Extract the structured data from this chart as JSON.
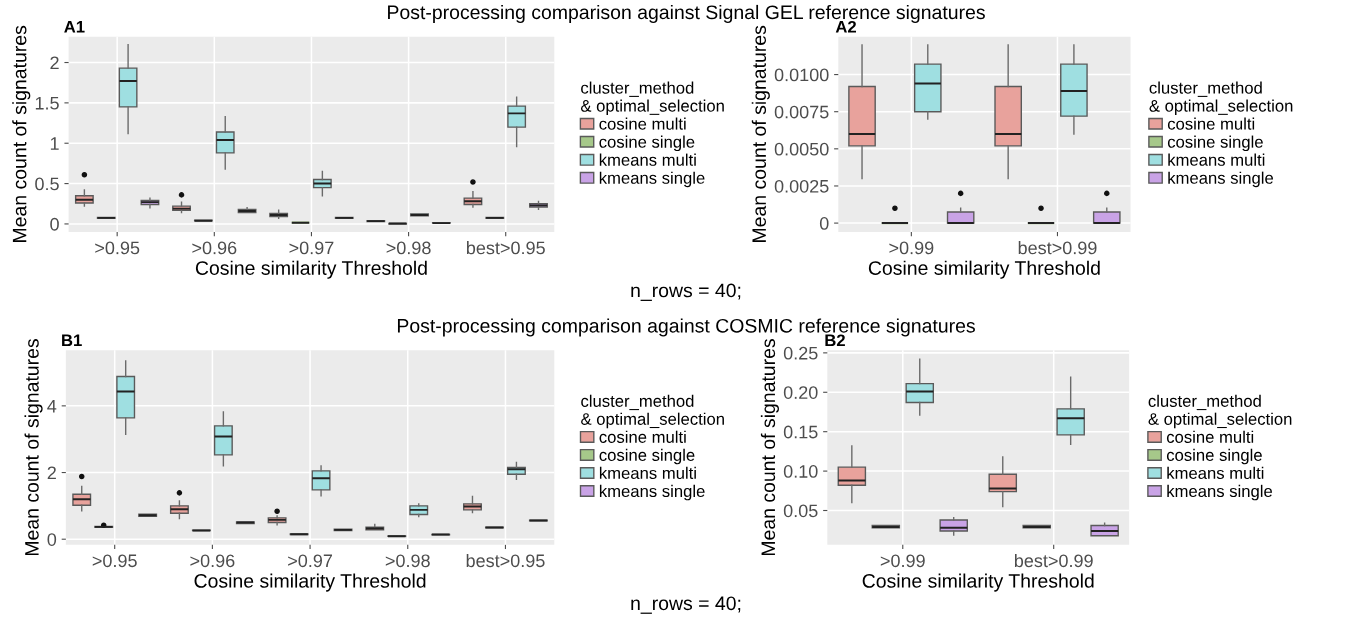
{
  "chart_data": [
    {
      "type": "box",
      "title": "A1",
      "xlabel": "Cosine similarity Threshold",
      "ylabel": "Mean count of signatures",
      "legend_title": "cluster_method\n& optimal_selection",
      "legend": "right",
      "grid": true,
      "annotations": [
        "Post-processing comparison against Signal GEL reference signatures",
        "n_rows = 40;"
      ],
      "categories": [
        ">0.95",
        ">0.96",
        ">0.97",
        ">0.98",
        "best>0.95"
      ],
      "ylim": [
        -0.1,
        2.32
      ],
      "yticks": [
        0,
        0.5,
        1,
        {
          "value": 1.5,
          "label": "1.5"
        },
        2
      ],
      "series": [
        {
          "name": "cosine multi",
          "color": "#e8a29c",
          "boxes": [
            {
              "low": 0.22,
              "q1": 0.26,
              "median": 0.3,
              "q3": 0.35,
              "high": 0.42,
              "outliers": [
                0.61
              ]
            },
            {
              "low": 0.14,
              "q1": 0.17,
              "median": 0.19,
              "q3": 0.22,
              "high": 0.27,
              "outliers": [
                0.36
              ]
            },
            {
              "low": 0.07,
              "q1": 0.09,
              "median": 0.11,
              "q3": 0.13,
              "high": 0.17
            },
            {
              "low": 0.03,
              "q1": 0.03,
              "median": 0.035,
              "q3": 0.04,
              "high": 0.04
            },
            {
              "low": 0.21,
              "q1": 0.24,
              "median": 0.28,
              "q3": 0.32,
              "high": 0.4,
              "outliers": [
                0.52
              ]
            }
          ]
        },
        {
          "name": "cosine single",
          "color": "#a6c88a",
          "boxes": [
            {
              "low": 0.07,
              "q1": 0.07,
              "median": 0.075,
              "q3": 0.08,
              "high": 0.08
            },
            {
              "low": 0.04,
              "q1": 0.04,
              "median": 0.04,
              "q3": 0.045,
              "high": 0.045
            },
            {
              "low": 0.015,
              "q1": 0.015,
              "median": 0.015,
              "q3": 0.015,
              "high": 0.015
            },
            {
              "low": 0,
              "q1": 0,
              "median": 0.005,
              "q3": 0.005,
              "high": 0.005
            },
            {
              "low": 0.07,
              "q1": 0.07,
              "median": 0.075,
              "q3": 0.08,
              "high": 0.08
            }
          ]
        },
        {
          "name": "kmeans multi",
          "color": "#9fdfe1",
          "boxes": [
            {
              "low": 1.12,
              "q1": 1.45,
              "median": 1.77,
              "q3": 1.93,
              "high": 2.22
            },
            {
              "low": 0.68,
              "q1": 0.88,
              "median": 1.04,
              "q3": 1.14,
              "high": 1.33
            },
            {
              "low": 0.35,
              "q1": 0.45,
              "median": 0.5,
              "q3": 0.55,
              "high": 0.65
            },
            {
              "low": 0.1,
              "q1": 0.1,
              "median": 0.11,
              "q3": 0.125,
              "high": 0.125
            },
            {
              "low": 0.96,
              "q1": 1.2,
              "median": 1.37,
              "q3": 1.46,
              "high": 1.57
            }
          ]
        },
        {
          "name": "kmeans single",
          "color": "#c9a3e6",
          "boxes": [
            {
              "low": 0.2,
              "q1": 0.24,
              "median": 0.27,
              "q3": 0.29,
              "high": 0.32
            },
            {
              "low": 0.13,
              "q1": 0.14,
              "median": 0.16,
              "q3": 0.18,
              "high": 0.2
            },
            {
              "low": 0.06,
              "q1": 0.07,
              "median": 0.075,
              "q3": 0.08,
              "high": 0.09
            },
            {
              "low": 0.01,
              "q1": 0.01,
              "median": 0.01,
              "q3": 0.015,
              "high": 0.015
            },
            {
              "low": 0.18,
              "q1": 0.21,
              "median": 0.23,
              "q3": 0.25,
              "high": 0.28
            }
          ]
        }
      ]
    },
    {
      "type": "box",
      "title": "A2",
      "xlabel": "Cosine similarity Threshold",
      "ylabel": "Mean count of signatures",
      "legend_title": "cluster_method\n& optimal_selection",
      "legend": "right",
      "grid": true,
      "categories": [
        ">0.99",
        "best>0.99"
      ],
      "ylim": [
        -0.0006,
        0.01255
      ],
      "yticks": [
        0,
        {
          "value": 0.0025,
          "label": "0.0025"
        },
        {
          "value": 0.005,
          "label": "0.0050"
        },
        {
          "value": 0.0075,
          "label": "0.0075"
        },
        {
          "value": 0.01,
          "label": "0.0100"
        }
      ],
      "series": [
        {
          "name": "cosine multi",
          "color": "#e8a29c",
          "boxes": [
            {
              "low": 0.003,
              "q1": 0.0052,
              "median": 0.006,
              "q3": 0.0092,
              "high": 0.012
            },
            {
              "low": 0.003,
              "q1": 0.0052,
              "median": 0.006,
              "q3": 0.0092,
              "high": 0.012
            }
          ]
        },
        {
          "name": "cosine single",
          "color": "#a6c88a",
          "boxes": [
            {
              "low": 0,
              "q1": 0,
              "median": 0,
              "q3": 0,
              "high": 0,
              "outliers": [
                0.001
              ]
            },
            {
              "low": 0,
              "q1": 0,
              "median": 0,
              "q3": 0,
              "high": 0,
              "outliers": [
                0.001
              ]
            }
          ]
        },
        {
          "name": "kmeans multi",
          "color": "#9fdfe1",
          "boxes": [
            {
              "low": 0.007,
              "q1": 0.0075,
              "median": 0.0094,
              "q3": 0.0107,
              "high": 0.012
            },
            {
              "low": 0.006,
              "q1": 0.0072,
              "median": 0.0089,
              "q3": 0.0107,
              "high": 0.012
            }
          ]
        },
        {
          "name": "kmeans single",
          "color": "#c9a3e6",
          "boxes": [
            {
              "low": 0,
              "q1": 0,
              "median": 0,
              "q3": 0.00075,
              "high": 0.001,
              "outliers": [
                0.002
              ]
            },
            {
              "low": 0,
              "q1": 0,
              "median": 0,
              "q3": 0.00075,
              "high": 0.001,
              "outliers": [
                0.002
              ]
            }
          ]
        }
      ]
    },
    {
      "type": "box",
      "title": "B1",
      "xlabel": "Cosine similarity Threshold",
      "ylabel": "Mean count of signatures",
      "legend_title": "cluster_method\n& optimal_selection",
      "legend": "right",
      "grid": true,
      "annotations": [
        "Post-processing comparison against COSMIC reference signatures",
        "n_rows = 40;"
      ],
      "categories": [
        ">0.95",
        ">0.96",
        ">0.97",
        ">0.98",
        "best>0.95"
      ],
      "ylim": [
        -0.17,
        5.67
      ],
      "yticks": [
        0,
        2,
        4
      ],
      "series": [
        {
          "name": "cosine multi",
          "color": "#e8a29c",
          "boxes": [
            {
              "low": 0.85,
              "q1": 1.02,
              "median": 1.2,
              "q3": 1.35,
              "high": 1.58,
              "outliers": [
                1.88
              ]
            },
            {
              "low": 0.62,
              "q1": 0.78,
              "median": 0.9,
              "q3": 1.0,
              "high": 1.15,
              "outliers": [
                1.39
              ]
            },
            {
              "low": 0.43,
              "q1": 0.5,
              "median": 0.58,
              "q3": 0.64,
              "high": 0.7,
              "outliers": [
                0.84
              ]
            },
            {
              "low": 0.28,
              "q1": 0.28,
              "median": 0.32,
              "q3": 0.36,
              "high": 0.44
            },
            {
              "low": 0.8,
              "q1": 0.88,
              "median": 0.98,
              "q3": 1.06,
              "high": 1.28
            }
          ]
        },
        {
          "name": "cosine single",
          "color": "#a6c88a",
          "boxes": [
            {
              "low": 0.36,
              "q1": 0.36,
              "median": 0.37,
              "q3": 0.38,
              "high": 0.38,
              "outliers": [
                0.42
              ]
            },
            {
              "low": 0.26,
              "q1": 0.26,
              "median": 0.26,
              "q3": 0.27,
              "high": 0.27
            },
            {
              "low": 0.14,
              "q1": 0.14,
              "median": 0.15,
              "q3": 0.16,
              "high": 0.16
            },
            {
              "low": 0.09,
              "q1": 0.09,
              "median": 0.09,
              "q3": 0.1,
              "high": 0.1
            },
            {
              "low": 0.34,
              "q1": 0.34,
              "median": 0.35,
              "q3": 0.36,
              "high": 0.36
            }
          ]
        },
        {
          "name": "kmeans multi",
          "color": "#9fdfe1",
          "boxes": [
            {
              "low": 3.15,
              "q1": 3.64,
              "median": 4.43,
              "q3": 4.88,
              "high": 5.35
            },
            {
              "low": 2.2,
              "q1": 2.53,
              "median": 3.08,
              "q3": 3.4,
              "high": 3.82
            },
            {
              "low": 1.3,
              "q1": 1.48,
              "median": 1.83,
              "q3": 2.05,
              "high": 2.2
            },
            {
              "low": 0.68,
              "q1": 0.74,
              "median": 0.88,
              "q3": 1.0,
              "high": 1.06
            },
            {
              "low": 1.8,
              "q1": 1.95,
              "median": 2.1,
              "q3": 2.15,
              "high": 2.3
            }
          ]
        },
        {
          "name": "kmeans single",
          "color": "#c9a3e6",
          "boxes": [
            {
              "low": 0.69,
              "q1": 0.69,
              "median": 0.72,
              "q3": 0.75,
              "high": 0.75
            },
            {
              "low": 0.47,
              "q1": 0.47,
              "median": 0.5,
              "q3": 0.52,
              "high": 0.52
            },
            {
              "low": 0.26,
              "q1": 0.26,
              "median": 0.28,
              "q3": 0.3,
              "high": 0.3
            },
            {
              "low": 0.13,
              "q1": 0.13,
              "median": 0.14,
              "q3": 0.14,
              "high": 0.14
            },
            {
              "low": 0.55,
              "q1": 0.55,
              "median": 0.56,
              "q3": 0.57,
              "high": 0.57
            }
          ]
        }
      ]
    },
    {
      "type": "box",
      "title": "B2",
      "xlabel": "Cosine similarity Threshold",
      "ylabel": "Mean count of signatures",
      "legend_title": "cluster_method\n& optimal_selection",
      "legend": "right",
      "grid": true,
      "categories": [
        ">0.99",
        "best>0.99"
      ],
      "ylim": [
        0.0064,
        0.2534
      ],
      "yticks": [
        {
          "value": 0.05,
          "label": "0.05"
        },
        {
          "value": 0.1,
          "label": "0.10"
        },
        {
          "value": 0.15,
          "label": "0.15"
        },
        {
          "value": 0.2,
          "label": "0.20"
        },
        {
          "value": 0.25,
          "label": "0.25"
        }
      ],
      "series": [
        {
          "name": "cosine multi",
          "color": "#e8a29c",
          "boxes": [
            {
              "low": 0.06,
              "q1": 0.082,
              "median": 0.088,
              "q3": 0.105,
              "high": 0.132
            },
            {
              "low": 0.055,
              "q1": 0.074,
              "median": 0.078,
              "q3": 0.096,
              "high": 0.118
            }
          ]
        },
        {
          "name": "cosine single",
          "color": "#a6c88a",
          "boxes": [
            {
              "low": 0.028,
              "q1": 0.028,
              "median": 0.029,
              "q3": 0.031,
              "high": 0.031
            },
            {
              "low": 0.028,
              "q1": 0.028,
              "median": 0.029,
              "q3": 0.031,
              "high": 0.031
            }
          ]
        },
        {
          "name": "kmeans multi",
          "color": "#9fdfe1",
          "boxes": [
            {
              "low": 0.171,
              "q1": 0.187,
              "median": 0.201,
              "q3": 0.211,
              "high": 0.242
            },
            {
              "low": 0.134,
              "q1": 0.146,
              "median": 0.167,
              "q3": 0.179,
              "high": 0.219
            }
          ]
        },
        {
          "name": "kmeans single",
          "color": "#c9a3e6",
          "boxes": [
            {
              "low": 0.019,
              "q1": 0.024,
              "median": 0.028,
              "q3": 0.038,
              "high": 0.041
            },
            {
              "low": 0.018,
              "q1": 0.018,
              "median": 0.024,
              "q3": 0.031,
              "high": 0.034
            }
          ]
        }
      ]
    }
  ]
}
